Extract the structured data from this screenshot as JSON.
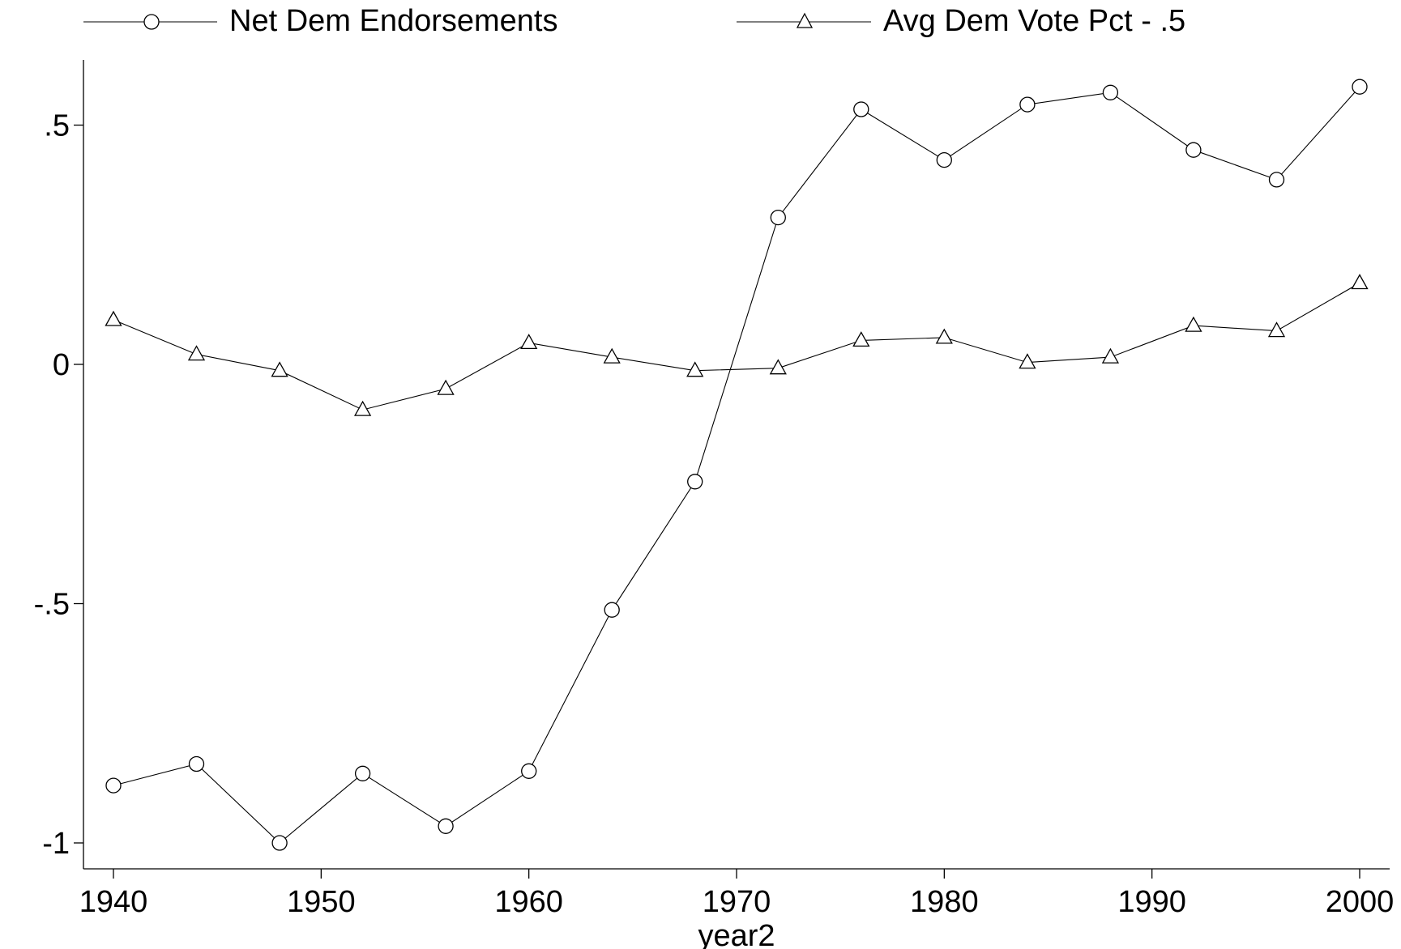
{
  "chart_data": {
    "type": "line",
    "xlabel": "year2",
    "ylabel": "",
    "xlim": [
      1940,
      2000
    ],
    "ylim": [
      -1.05,
      0.63
    ],
    "xticks": [
      1940,
      1950,
      1960,
      1970,
      1980,
      1990,
      2000
    ],
    "xtick_labels": [
      "1940",
      "1950",
      "1960",
      "1970",
      "1980",
      "1990",
      "2000"
    ],
    "yticks": [
      0.5,
      0,
      -0.5,
      -1
    ],
    "ytick_labels": [
      ".5",
      "0",
      "-.5",
      "-1"
    ],
    "grid": false,
    "legend_position": "top",
    "x": [
      1940,
      1944,
      1948,
      1952,
      1956,
      1960,
      1964,
      1968,
      1972,
      1976,
      1980,
      1984,
      1988,
      1992,
      1996,
      2000
    ],
    "series": [
      {
        "name": "Net Dem Endorsements",
        "marker": "circle",
        "values": [
          -0.88,
          -0.835,
          -1.0,
          -0.855,
          -0.965,
          -0.85,
          -0.513,
          -0.245,
          0.307,
          0.533,
          0.427,
          0.543,
          0.568,
          0.448,
          0.386,
          0.58
        ]
      },
      {
        "name": "Avg Dem Vote Pct - .5",
        "marker": "triangle",
        "values": [
          0.093,
          0.021,
          -0.013,
          -0.095,
          -0.051,
          0.045,
          0.015,
          -0.013,
          -0.008,
          0.05,
          0.056,
          0.004,
          0.015,
          0.081,
          0.07,
          0.17
        ]
      }
    ]
  }
}
